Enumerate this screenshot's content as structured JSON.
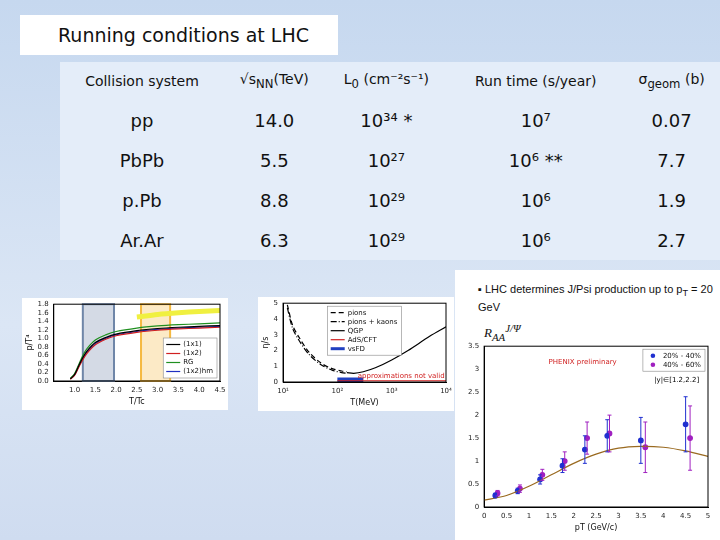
{
  "title": "Running conditions at LHC",
  "table": {
    "headers": [
      {
        "text": "Collision system"
      },
      {
        "text": "√s",
        "sub": "NN",
        "after": "(TeV)"
      },
      {
        "text": "L",
        "sub": "0",
        "after": " (cm⁻²s⁻¹)"
      },
      {
        "text": "Run time (s/year)"
      },
      {
        "text": "σ",
        "sub": "geom",
        "after": " (b)"
      }
    ],
    "rows": [
      [
        "pp",
        "14.0",
        "10³⁴ *",
        "10⁷",
        "0.07"
      ],
      [
        "PbPb",
        "5.5",
        "10²⁷",
        "10⁶ **",
        "7.7"
      ],
      [
        "p.Pb",
        "8.8",
        "10²⁹",
        "10⁶",
        "1.9"
      ],
      [
        "Ar.Ar",
        "6.3",
        "10²⁹",
        "10⁶",
        "2.7"
      ]
    ]
  },
  "note": {
    "text": "▪ LHC determines J/Psi production up to p",
    "sub": "T",
    "after": " = 20 GeV"
  },
  "chart_data": [
    {
      "type": "line",
      "xlabel": "T/Tc",
      "ylabel": "p/T⁴",
      "xlim": [
        0.5,
        4.5
      ],
      "ylim": [
        0,
        1.8
      ],
      "xticks": [
        {
          "value": 1,
          "label": "1.0"
        },
        1.5,
        {
          "value": 2,
          "label": "2.0"
        },
        2.5,
        {
          "value": 3,
          "label": "3.0"
        },
        3.5,
        {
          "value": 4,
          "label": "4.0"
        },
        4.5
      ],
      "yticks": [
        {
          "value": 0,
          "label": "0.0"
        },
        0.2,
        0.4,
        0.6,
        0.8,
        {
          "value": 1,
          "label": "1.0"
        },
        1.2,
        1.4,
        1.6,
        1.8
      ],
      "grid": false,
      "legend": "lower right",
      "x": [
        0.9,
        1.0,
        1.1,
        1.2,
        1.3,
        1.5,
        1.75,
        2.0,
        2.5,
        3.0,
        3.5,
        4.0,
        4.5
      ],
      "series": [
        {
          "name": "(1x1)",
          "color": "#000000",
          "line_style": "solid",
          "values": [
            0.05,
            0.15,
            0.35,
            0.55,
            0.7,
            0.9,
            1.02,
            1.1,
            1.18,
            1.23,
            1.26,
            1.28,
            1.3
          ]
        },
        {
          "name": "(1x2)",
          "color": "#d02020",
          "line_style": "solid",
          "values": [
            0.04,
            0.13,
            0.32,
            0.5,
            0.65,
            0.85,
            0.98,
            1.06,
            1.14,
            1.19,
            1.22,
            1.24,
            1.26
          ]
        },
        {
          "name": "RG",
          "color": "#209020",
          "line_style": "solid",
          "values": [
            0.06,
            0.17,
            0.38,
            0.6,
            0.76,
            0.96,
            1.08,
            1.16,
            1.24,
            1.29,
            1.32,
            1.34,
            1.36
          ]
        },
        {
          "name": "(1x2)hm",
          "color": "#2030c0",
          "line_style": "solid",
          "values": [
            0.05,
            0.14,
            0.34,
            0.53,
            0.68,
            0.88,
            1.0,
            1.08,
            1.16,
            1.21,
            1.24,
            1.26,
            1.28
          ]
        },
        {
          "color": "#f0f040",
          "line_style": "thick",
          "values": [
            null,
            null,
            null,
            null,
            null,
            null,
            null,
            null,
            1.5,
            1.56,
            1.6,
            1.63,
            1.65
          ]
        }
      ],
      "highlights": [
        {
          "xlim": [
            1.2,
            1.95
          ],
          "color": "#6f86a8"
        },
        {
          "xlim": [
            2.6,
            3.3
          ],
          "color": "#f5b942"
        }
      ]
    },
    {
      "type": "line",
      "log": "x",
      "xlabel": "T(MeV)",
      "ylabel": "η/s",
      "xlim": [
        10,
        10000
      ],
      "ylim": [
        0,
        5
      ],
      "xticks": [
        {
          "value": 10,
          "label": "10¹"
        },
        {
          "value": 100,
          "label": "10²"
        },
        {
          "value": 1000,
          "label": "10³"
        },
        {
          "value": 10000,
          "label": "10⁴"
        }
      ],
      "yticks": [
        0,
        1,
        2,
        3,
        4,
        5
      ],
      "grid": false,
      "legend": "upper center",
      "series": [
        {
          "name": "pions",
          "color": "#000000",
          "line_style": "dashed",
          "x": [
            12,
            15,
            20,
            30,
            50,
            80,
            120,
            150
          ],
          "values": [
            4.9,
            3.6,
            2.8,
            1.9,
            1.2,
            0.85,
            0.7,
            0.65
          ]
        },
        {
          "name": "pions + kaons",
          "color": "#000000",
          "line_style": "dashdot",
          "x": [
            12,
            15,
            20,
            30,
            50,
            80,
            120,
            150
          ],
          "values": [
            4.7,
            3.4,
            2.6,
            1.75,
            1.1,
            0.75,
            0.6,
            0.55
          ]
        },
        {
          "name": "QGP",
          "color": "#000000",
          "line_style": "solid",
          "x": [
            150,
            200,
            300,
            500,
            1000,
            2000,
            5000,
            10000
          ],
          "values": [
            0.6,
            0.55,
            0.65,
            0.9,
            1.4,
            2.0,
            2.9,
            3.5
          ]
        },
        {
          "name": "AdS/CFT",
          "color": "#d02020",
          "line_style": "solid",
          "x": [
            100,
            10000
          ],
          "values": [
            0.08,
            0.08
          ]
        },
        {
          "name": "vsFD",
          "color": "#2040c0",
          "line_style": "thick",
          "x": [
            100,
            300
          ],
          "values": [
            0.12,
            0.12
          ]
        }
      ],
      "annotations": [
        {
          "text": "approximations not valid",
          "x": 1500,
          "y": 0.4,
          "color": "#d02020"
        }
      ]
    },
    {
      "type": "line",
      "xlabel": "pT (GeV/c)",
      "ylabel": {
        "text": "R",
        "sub": "AA",
        "sup": "J/Ψ"
      },
      "xlim": [
        0,
        5
      ],
      "ylim": [
        0,
        3.5
      ],
      "xticks": [
        0,
        0.5,
        1,
        1.5,
        2,
        2.5,
        3,
        3.5,
        4,
        4.5,
        5
      ],
      "yticks": [
        0,
        0.5,
        1,
        1.5,
        2,
        2.5,
        3,
        3.5
      ],
      "grid": false,
      "legend": "upper right",
      "series": [
        {
          "color": "#9a6a20",
          "line_style": "solid",
          "x": [
            0,
            0.5,
            1,
            1.5,
            2,
            2.5,
            3,
            3.5,
            4,
            4.5,
            5
          ],
          "values": [
            0.15,
            0.25,
            0.45,
            0.7,
            0.95,
            1.15,
            1.28,
            1.32,
            1.3,
            1.22,
            1.1
          ]
        },
        {
          "name": "20% - 40%",
          "color": "#2030d0",
          "line_style": "none",
          "marker": "circle",
          "x": [
            0.25,
            0.75,
            1.25,
            1.75,
            2.25,
            2.75,
            3.5,
            4.5
          ],
          "values": [
            0.25,
            0.35,
            0.6,
            0.9,
            1.25,
            1.55,
            1.45,
            1.8
          ],
          "errors": [
            0.05,
            0.06,
            0.1,
            0.15,
            0.3,
            0.35,
            0.5,
            0.6
          ]
        },
        {
          "name": "40% - 60%",
          "color": "#a020c0",
          "line_style": "none",
          "marker": "circle",
          "x": [
            0.3,
            0.8,
            1.3,
            1.8,
            2.3,
            2.8,
            3.6,
            4.6
          ],
          "values": [
            0.3,
            0.4,
            0.7,
            1.0,
            1.5,
            1.6,
            1.3,
            1.5
          ],
          "errors": [
            0.06,
            0.08,
            0.12,
            0.2,
            0.35,
            0.4,
            0.55,
            0.7
          ]
        }
      ],
      "annotations": [
        {
          "text": "PHENIX preliminary",
          "x": 2.2,
          "y": 3.15,
          "color": "#d02020"
        },
        {
          "text": "|y|∈[1.2,2.2]",
          "x": 4.3,
          "y": 2.75,
          "color": "#000000"
        }
      ]
    }
  ]
}
